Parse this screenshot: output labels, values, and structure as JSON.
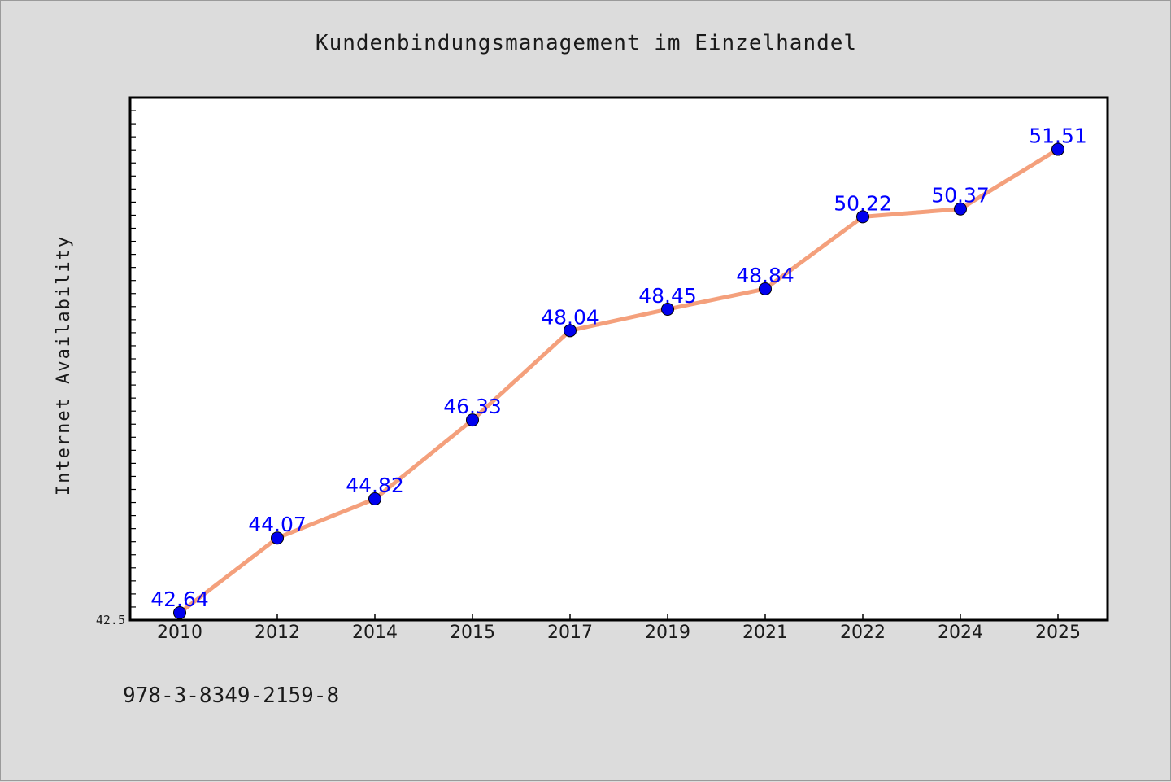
{
  "chart_data": {
    "type": "line",
    "title": "Kundenbindungsmanagement im Einzelhandel",
    "xlabel": "",
    "ylabel": "Internet Availability",
    "categories": [
      "2010",
      "2012",
      "2014",
      "2015",
      "2017",
      "2019",
      "2021",
      "2022",
      "2024",
      "2025"
    ],
    "series": [
      {
        "values": [
          42.64,
          44.07,
          44.82,
          46.33,
          48.04,
          48.45,
          48.84,
          50.22,
          50.37,
          51.51
        ]
      }
    ],
    "data_labels": [
      "42.64",
      "44.07",
      "44.82",
      "46.33",
      "48.04",
      "48.45",
      "48.84",
      "50.22",
      "50.37",
      "51.51"
    ],
    "y_tick_labels": [
      "42.5"
    ],
    "ylim": [
      42.5,
      52.5
    ],
    "grid": false,
    "legend": "none",
    "colors": {
      "line": "#f4a07c",
      "marker": "#0000ee",
      "label": "#0000ff",
      "background": "#dcdcdc",
      "plot_background": "#ffffff"
    }
  },
  "footer": {
    "isbn": "978-3-8349-2159-8"
  }
}
